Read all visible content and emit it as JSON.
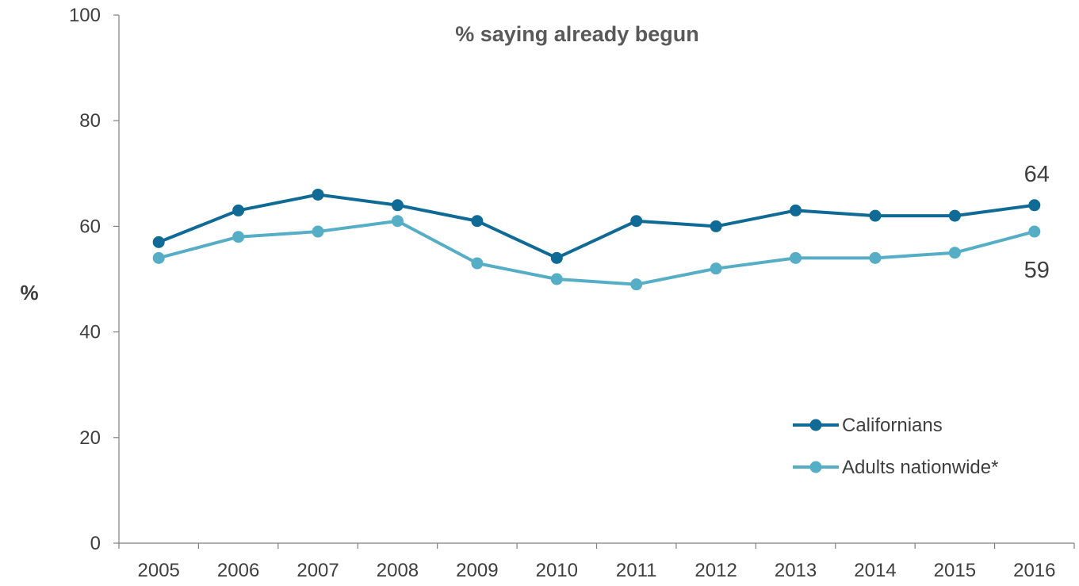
{
  "chart_data": {
    "type": "line",
    "title": "% saying already begun",
    "xlabel": "",
    "ylabel": "%",
    "x": [
      "2005",
      "2006",
      "2007",
      "2008",
      "2009",
      "2010",
      "2011",
      "2012",
      "2013",
      "2014",
      "2015",
      "2016"
    ],
    "ylim": [
      0,
      100
    ],
    "yticks": [
      "0",
      "20",
      "40",
      "60",
      "80",
      "100"
    ],
    "grid": false,
    "legend": "bottom-right",
    "series": [
      {
        "name": "Californians",
        "color": "#0f6a95",
        "values": [
          57,
          63,
          66,
          64,
          61,
          54,
          61,
          60,
          63,
          62,
          62,
          64
        ],
        "end_label": "64"
      },
      {
        "name": "Adults nationwide*",
        "color": "#55aec5",
        "values": [
          54,
          58,
          59,
          61,
          53,
          50,
          49,
          52,
          54,
          54,
          55,
          59
        ],
        "end_label": "59"
      }
    ]
  }
}
